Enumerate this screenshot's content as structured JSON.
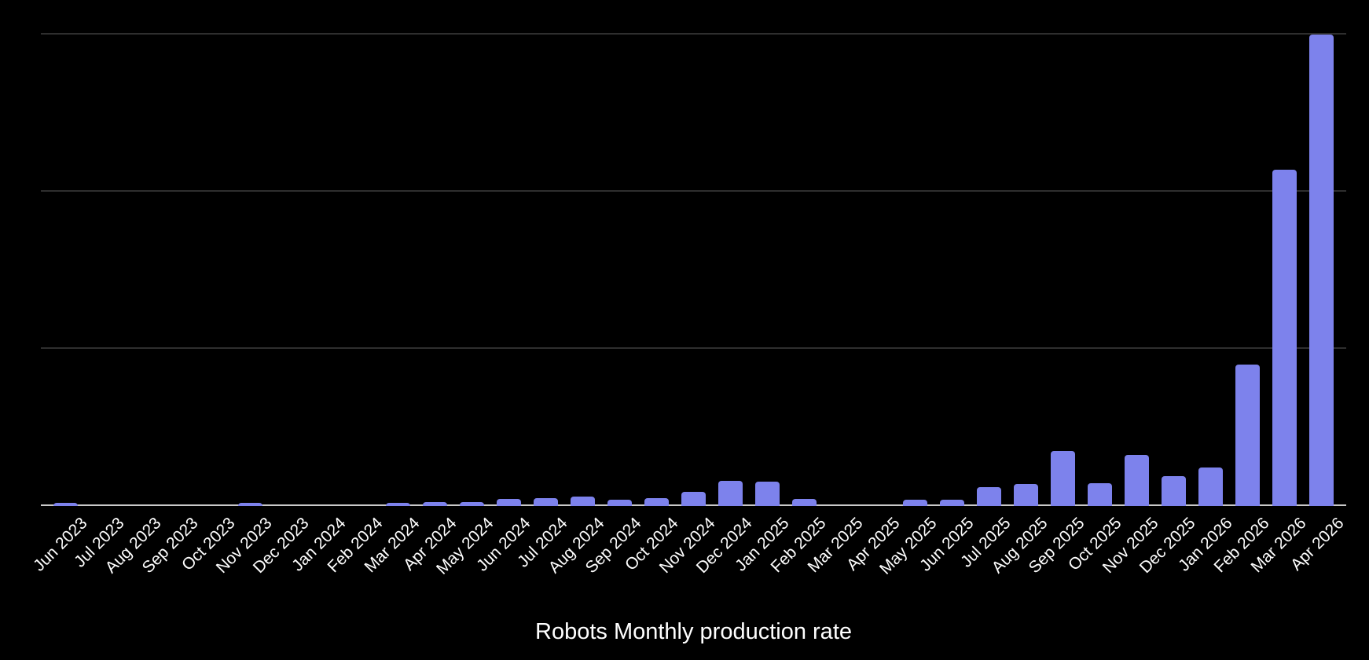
{
  "chart_data": {
    "type": "bar",
    "title": "Robots Monthly production rate",
    "xlabel": "",
    "ylabel": "",
    "legend_position": "none",
    "grid": true,
    "y_axis_labels_visible": false,
    "y_units_note": "no y-axis tick labels shown; values expressed in gridline intervals (1 interval = 1 unit)",
    "ylim": [
      0,
      3.05
    ],
    "gridline_values": [
      1,
      2,
      3
    ],
    "categories": [
      "Jun 2023",
      "Jul 2023",
      "Aug 2023",
      "Sep 2023",
      "Oct 2023",
      "Nov 2023",
      "Dec 2023",
      "Jan 2024",
      "Feb 2024",
      "Mar 2024",
      "Apr 2024",
      "May 2024",
      "Jun 2024",
      "Jul 2024",
      "Aug 2024",
      "Sep 2024",
      "Oct 2024",
      "Nov 2024",
      "Dec 2024",
      "Jan 2025",
      "Feb 2025",
      "Mar 2025",
      "Apr 2025",
      "May 2025",
      "Jun 2025",
      "Jul 2025",
      "Aug 2025",
      "Sep 2025",
      "Oct 2025",
      "Nov 2025",
      "Dec 2025",
      "Jan 2026",
      "Feb 2026",
      "Mar 2026",
      "Apr 2026"
    ],
    "values": [
      0.02,
      0,
      0,
      0,
      0,
      0.019,
      0,
      0,
      0,
      0.022,
      0.024,
      0.026,
      0.045,
      0.05,
      0.058,
      0.038,
      0.048,
      0.09,
      0.16,
      0.155,
      0.043,
      0,
      0,
      0.038,
      0.038,
      0.12,
      0.138,
      0.35,
      0.147,
      0.327,
      0.19,
      0.245,
      0.9,
      2.14,
      3.0
    ],
    "colors": {
      "background": "#000000",
      "bar": "#7d82ec",
      "gridline": "#2e2e2e",
      "axis_line": "#c9c9c9",
      "label_text": "#ffffff",
      "title_text": "#ffffff"
    },
    "x_label_rotation_deg": -45
  }
}
